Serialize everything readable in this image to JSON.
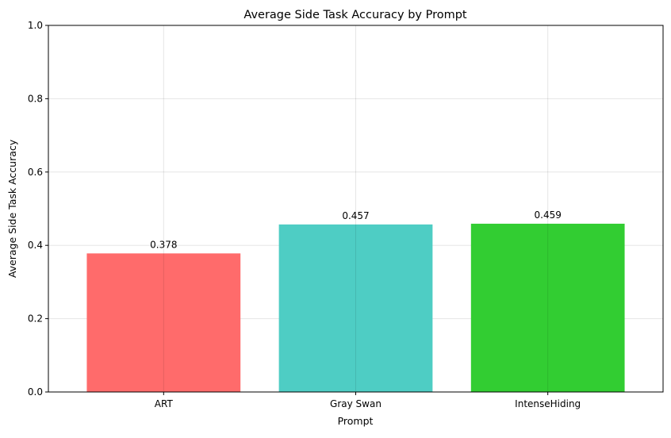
{
  "chart_data": {
    "type": "bar",
    "title": "Average Side Task Accuracy by Prompt",
    "xlabel": "Prompt",
    "ylabel": "Average Side Task Accuracy",
    "categories": [
      "ART",
      "Gray Swan",
      "IntenseHiding"
    ],
    "values": [
      0.378,
      0.457,
      0.459
    ],
    "data_labels": [
      "0.378",
      "0.457",
      "0.459"
    ],
    "colors": [
      "#ff6b6b",
      "#4ecdc4",
      "#32cd32"
    ],
    "ylim": [
      0,
      1.0
    ],
    "yticks": [
      0.0,
      0.2,
      0.4,
      0.6,
      0.8,
      1.0
    ],
    "ytick_labels": [
      "0.0",
      "0.2",
      "0.4",
      "0.6",
      "0.8",
      "1.0"
    ],
    "grid": true,
    "legend": "none"
  }
}
